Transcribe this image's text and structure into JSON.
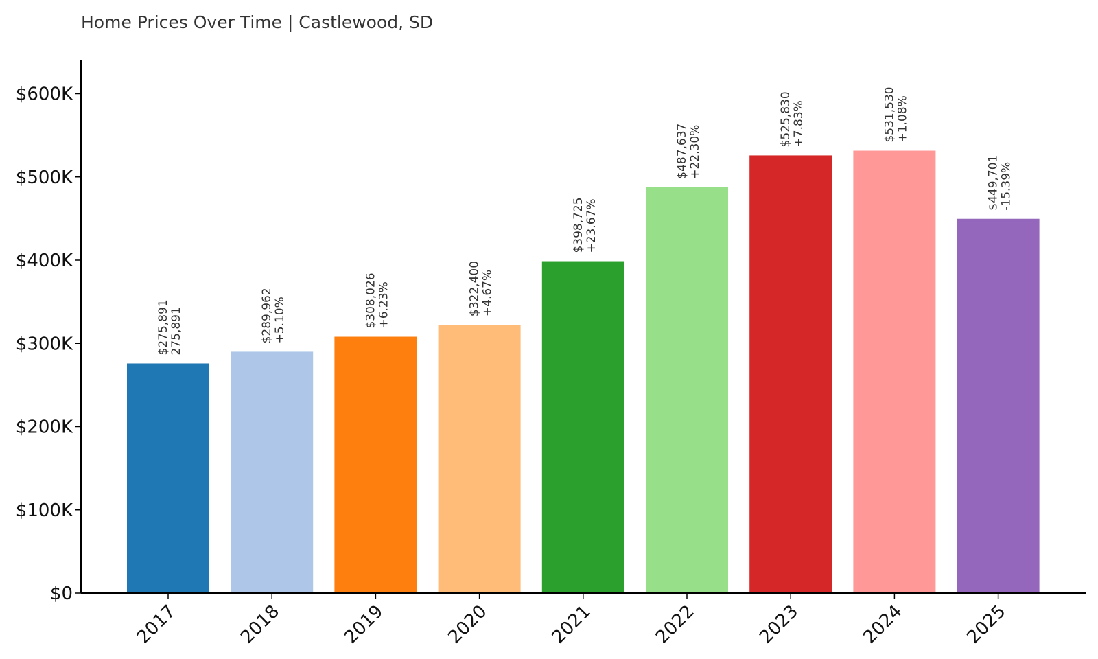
{
  "chart_data": {
    "type": "bar",
    "title": "Home Prices Over Time | Castlewood, SD",
    "xlabel": "",
    "ylabel": "",
    "categories": [
      "2017",
      "2018",
      "2019",
      "2020",
      "2021",
      "2022",
      "2023",
      "2024",
      "2025"
    ],
    "values": [
      275891,
      289962,
      308026,
      322400,
      398725,
      487637,
      525830,
      531530,
      449701
    ],
    "value_labels": [
      "$275,891",
      "$289,962",
      "$308,026",
      "$322,400",
      "$398,725",
      "$487,637",
      "$525,830",
      "$531,530",
      "$449,701"
    ],
    "change_labels": [
      "275,891",
      "+5.10%",
      "+6.23%",
      "+4.67%",
      "+23.67%",
      "+22.30%",
      "+7.83%",
      "+1.08%",
      "-15.39%"
    ],
    "colors": [
      "#1f77b4",
      "#aec7e8",
      "#ff7f0e",
      "#ffbb78",
      "#2ca02c",
      "#98df8a",
      "#d62728",
      "#ff9896",
      "#9467bd"
    ],
    "ylim": [
      0,
      640000
    ],
    "yticks": [
      0,
      100000,
      200000,
      300000,
      400000,
      500000,
      600000
    ],
    "ytick_labels": [
      "$0",
      "$100K",
      "$200K",
      "$300K",
      "$400K",
      "$500K",
      "$600K"
    ],
    "grid": false,
    "legend": "none"
  }
}
